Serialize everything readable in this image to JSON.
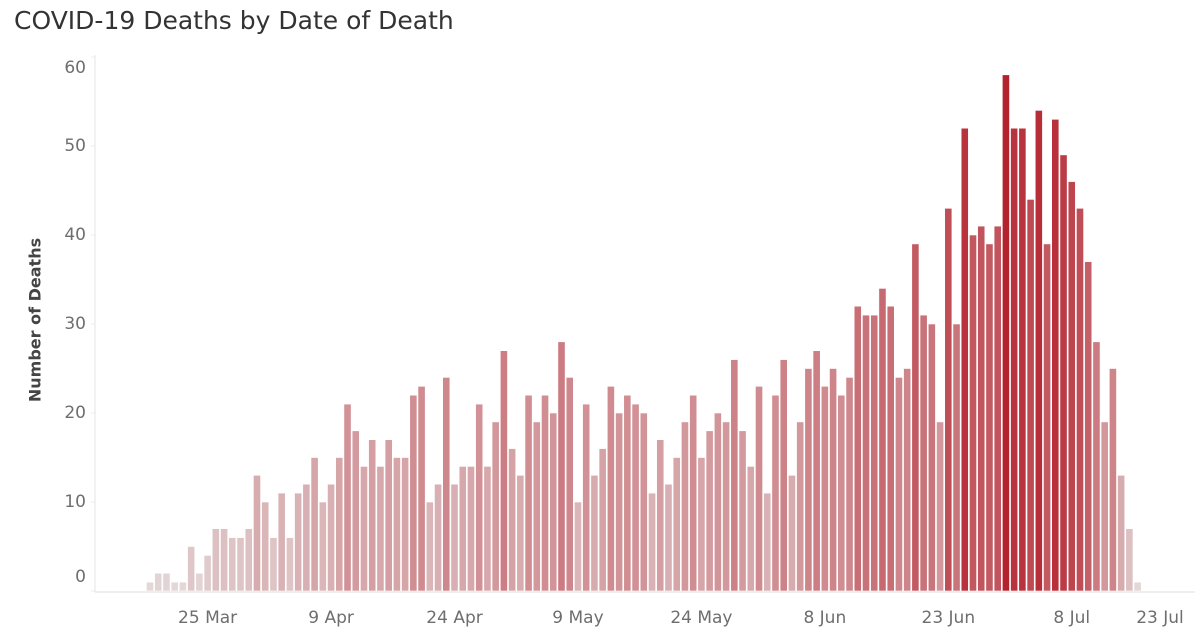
{
  "chart_data": {
    "type": "bar",
    "title": "COVID-19 Deaths by Date of Death",
    "y_label": "Number of Deaths",
    "categories": [
      null,
      null,
      null,
      null,
      null,
      null,
      null,
      "25 Mar",
      null,
      null,
      null,
      null,
      null,
      null,
      null,
      null,
      null,
      null,
      null,
      null,
      null,
      null,
      "9 Apr",
      null,
      null,
      null,
      null,
      null,
      null,
      null,
      null,
      null,
      null,
      null,
      null,
      null,
      null,
      "24 Apr",
      null,
      null,
      null,
      null,
      null,
      null,
      null,
      null,
      null,
      null,
      null,
      null,
      null,
      null,
      "9 May",
      null,
      null,
      null,
      null,
      null,
      null,
      null,
      null,
      null,
      null,
      null,
      null,
      null,
      null,
      "24 May",
      null,
      null,
      null,
      null,
      null,
      null,
      null,
      null,
      null,
      null,
      null,
      null,
      null,
      null,
      "8 Jun",
      null,
      null,
      null,
      null,
      null,
      null,
      null,
      null,
      null,
      null,
      null,
      null,
      null,
      null,
      "23 Jun",
      null,
      null,
      null,
      null,
      null,
      null,
      null,
      null,
      null,
      null,
      null,
      null,
      null,
      null,
      "8 Jul",
      null,
      null,
      null,
      null,
      null,
      null,
      null,
      null,
      null,
      null,
      null,
      null,
      null,
      null,
      "23 Jul"
    ],
    "values": [
      1,
      2,
      2,
      1,
      1,
      5,
      2,
      4,
      7,
      7,
      6,
      6,
      7,
      13,
      10,
      6,
      11,
      6,
      11,
      12,
      15,
      10,
      12,
      15,
      21,
      18,
      14,
      17,
      14,
      17,
      15,
      15,
      22,
      23,
      10,
      12,
      24,
      12,
      14,
      14,
      21,
      14,
      19,
      27,
      16,
      13,
      22,
      19,
      22,
      20,
      28,
      24,
      10,
      21,
      13,
      16,
      23,
      20,
      22,
      21,
      20,
      11,
      17,
      12,
      15,
      19,
      22,
      15,
      18,
      20,
      19,
      26,
      18,
      14,
      23,
      11,
      22,
      26,
      13,
      19,
      25,
      27,
      23,
      25,
      22,
      24,
      32,
      31,
      31,
      34,
      32,
      24,
      25,
      39,
      31,
      30,
      19,
      43,
      30,
      52,
      40,
      41,
      39,
      41,
      58,
      52,
      52,
      44,
      54,
      39,
      53,
      49,
      46,
      43,
      37,
      28,
      19,
      25,
      13,
      7,
      1,
      null,
      null,
      null,
      null,
      null,
      null,
      null
    ],
    "color_range": [
      "#e4dcdc",
      "#b21c28"
    ],
    "ylim": [
      0,
      60
    ],
    "yticks": [
      0,
      10,
      20,
      30,
      40,
      50,
      60
    ],
    "grid": false
  }
}
